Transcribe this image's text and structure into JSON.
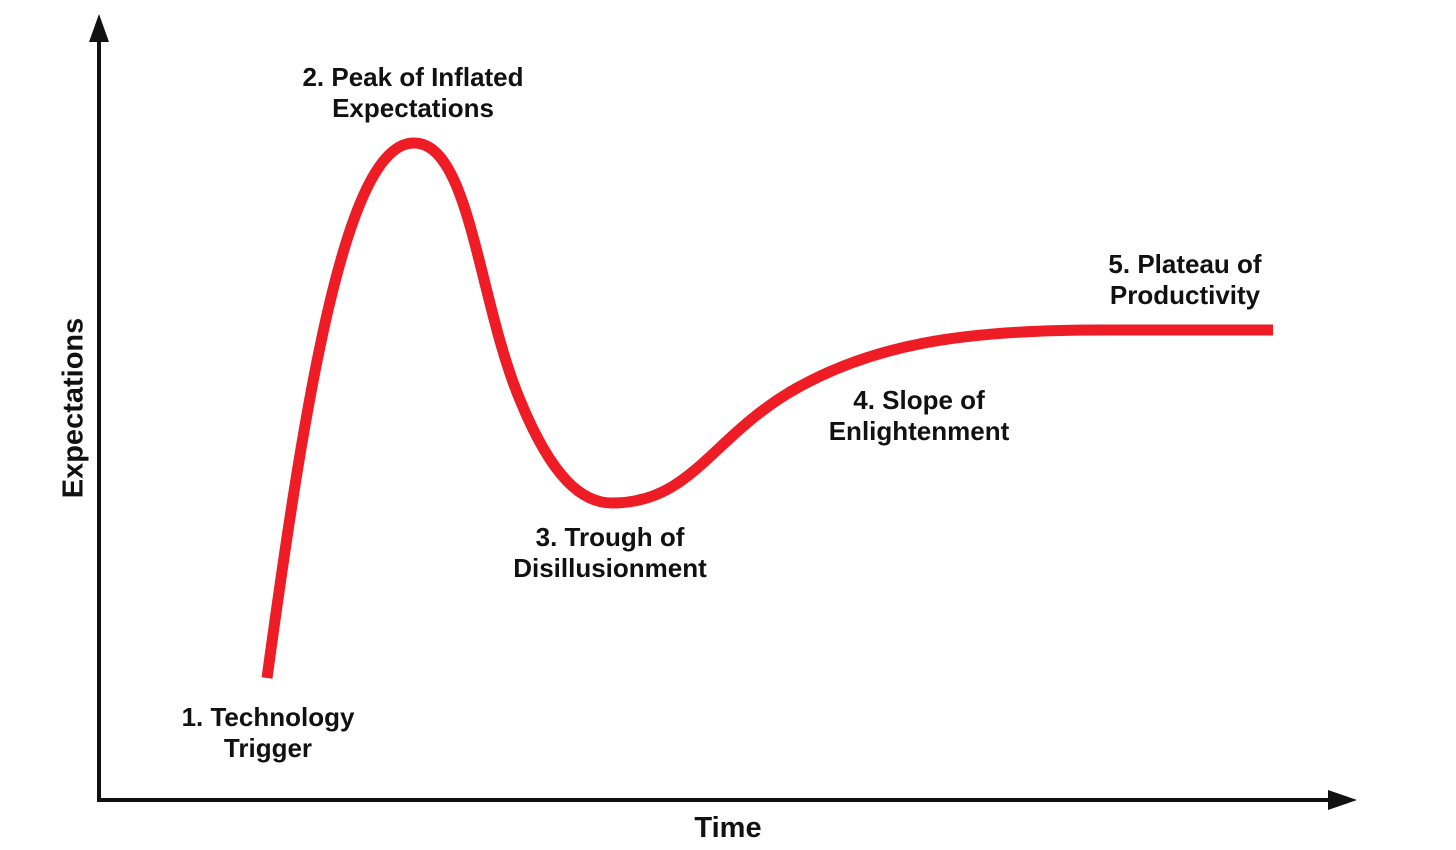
{
  "diagram": {
    "title": "",
    "x_axis_label": "Time",
    "y_axis_label": "Expectations",
    "curve_color": "#ee1c25",
    "axis_color": "#111111",
    "phases": [
      {
        "line1": "1. Technology",
        "line2": "Trigger"
      },
      {
        "line1": "2. Peak of Inflated",
        "line2": "Expectations"
      },
      {
        "line1": "3. Trough of",
        "line2": "Disillusionment"
      },
      {
        "line1": "4. Slope of",
        "line2": "Enlightenment"
      },
      {
        "line1": "5. Plateau of",
        "line2": "Productivity"
      }
    ]
  }
}
